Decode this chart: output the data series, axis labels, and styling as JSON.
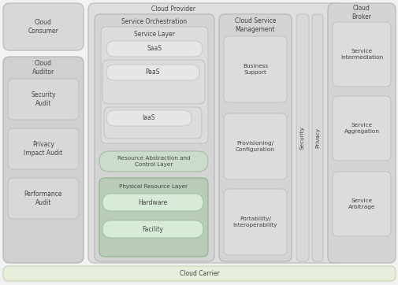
{
  "title": "Cloud Provider",
  "bg_color": "#f2f2f2",
  "cloud_carrier_text": "Cloud Carrier",
  "cloud_carrier_color": "#e8eedc",
  "cloud_carrier_border": "#c8d4b0",
  "service_orch_text": "Service Orchestration",
  "service_layer_text": "Service Layer",
  "saas_text": "SaaS",
  "paas_text": "PaaS",
  "iaas_text": "IaaS",
  "racl_text": "Resource Abstraction and\nControl Layer",
  "racl_color": "#ccdccc",
  "racl_border": "#a0c0a0",
  "prl_text": "Physical Resource Layer",
  "prl_color": "#b0cc b0",
  "prl_border": "#88b488",
  "hardware_text": "Hardware",
  "facility_text": "Facility",
  "hardware_pill_color": "#d8ead8",
  "hardware_pill_border": "#a0c4a0",
  "csm_text": "Cloud Service\nManagement",
  "csm_items": [
    "Business\nSupport",
    "Provisioning/\nConfiguration",
    "Portability/\nInteroperability"
  ],
  "security_text": "Security",
  "privacy_text": "Privacy",
  "broker_text": "Cloud\nBroker",
  "broker_items": [
    "Service\nIntermediation",
    "Service\nAggregation",
    "Service\nArbitrage"
  ],
  "gray_box": "#d8d8d8",
  "gray_box_border": "#b8b8b8",
  "gray_mid": "#d0d0d0",
  "gray_mid_border": "#b0b0b0",
  "gray_light": "#e0e0e0",
  "gray_light_border": "#c8c8c8",
  "gray_pill": "#e4e4e4",
  "gray_pill_border": "#c4c4c4",
  "text_color": "#444444",
  "font_size": 5.5
}
